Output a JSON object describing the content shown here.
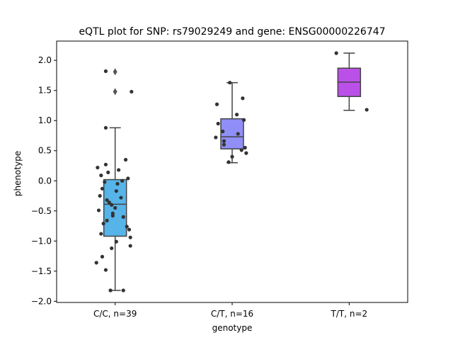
{
  "chart_data": {
    "type": "box",
    "title": "eQTL plot for SNP: rs79029249 and gene: ENSG00000226747",
    "xlabel": "genotype",
    "ylabel": "phenotype",
    "ylim": [
      -2.02,
      2.32
    ],
    "yticks": [
      2.0,
      1.5,
      1.0,
      0.5,
      0.0,
      -0.5,
      -1.0,
      -1.5,
      -2.0
    ],
    "ytick_labels": [
      "2.0",
      "1.5",
      "1.0",
      "0.5",
      "0.0",
      "−0.5",
      "−1.0",
      "−1.5",
      "−2.0"
    ],
    "categories": [
      "C/C, n=39",
      "C/T, n=16",
      "T/T, n=2"
    ],
    "boxes": [
      {
        "category": "C/C, n=39",
        "color": "#56b4e9",
        "q1": -0.92,
        "median": -0.39,
        "q3": 0.02,
        "whisker_low": -1.82,
        "whisker_high": 0.88,
        "outliers": [
          1.81,
          1.48
        ]
      },
      {
        "category": "C/T, n=16",
        "color": "#8f8ff7",
        "q1": 0.53,
        "median": 0.73,
        "q3": 1.03,
        "whisker_low": 0.3,
        "whisker_high": 1.63,
        "outliers": []
      },
      {
        "category": "T/T, n=2",
        "color": "#bb50e8",
        "q1": 1.4,
        "median": 1.64,
        "q3": 1.87,
        "whisker_low": 1.17,
        "whisker_high": 2.12,
        "outliers": []
      }
    ],
    "points": [
      [
        {
          "dx": -0.08,
          "y": 1.82
        },
        {
          "dx": 0.14,
          "y": 1.48
        },
        {
          "dx": -0.08,
          "y": 0.88
        },
        {
          "dx": 0.09,
          "y": 0.35
        },
        {
          "dx": -0.08,
          "y": 0.27
        },
        {
          "dx": -0.15,
          "y": 0.22
        },
        {
          "dx": 0.03,
          "y": 0.18
        },
        {
          "dx": -0.06,
          "y": 0.14
        },
        {
          "dx": -0.12,
          "y": 0.09
        },
        {
          "dx": 0.11,
          "y": 0.04
        },
        {
          "dx": 0.06,
          "y": 0.0
        },
        {
          "dx": -0.09,
          "y": -0.02
        },
        {
          "dx": 0.02,
          "y": -0.05
        },
        {
          "dx": -0.11,
          "y": -0.13
        },
        {
          "dx": 0.01,
          "y": -0.17
        },
        {
          "dx": -0.13,
          "y": -0.25
        },
        {
          "dx": -0.07,
          "y": -0.32
        },
        {
          "dx": -0.05,
          "y": -0.36
        },
        {
          "dx": -0.03,
          "y": -0.4
        },
        {
          "dx": 0.0,
          "y": -0.45
        },
        {
          "dx": -0.14,
          "y": -0.49
        },
        {
          "dx": -0.02,
          "y": -0.54
        },
        {
          "dx": 0.07,
          "y": -0.6
        },
        {
          "dx": -0.07,
          "y": -0.66
        },
        {
          "dx": -0.1,
          "y": -0.71
        },
        {
          "dx": 0.1,
          "y": -0.76
        },
        {
          "dx": 0.12,
          "y": -0.81
        },
        {
          "dx": -0.12,
          "y": -0.88
        },
        {
          "dx": 0.13,
          "y": -0.94
        },
        {
          "dx": 0.01,
          "y": -1.01
        },
        {
          "dx": 0.13,
          "y": -1.08
        },
        {
          "dx": -0.03,
          "y": -1.12
        },
        {
          "dx": -0.11,
          "y": -1.26
        },
        {
          "dx": -0.16,
          "y": -1.36
        },
        {
          "dx": -0.08,
          "y": -1.48
        },
        {
          "dx": -0.04,
          "y": -1.82
        },
        {
          "dx": 0.07,
          "y": -1.82
        },
        {
          "dx": -0.02,
          "y": -0.58
        },
        {
          "dx": 0.05,
          "y": -0.28
        }
      ],
      [
        {
          "dx": -0.02,
          "y": 1.63
        },
        {
          "dx": 0.09,
          "y": 1.37
        },
        {
          "dx": -0.13,
          "y": 1.27
        },
        {
          "dx": 0.04,
          "y": 1.1
        },
        {
          "dx": 0.1,
          "y": 1.01
        },
        {
          "dx": -0.12,
          "y": 0.95
        },
        {
          "dx": -0.08,
          "y": 0.82
        },
        {
          "dx": -0.14,
          "y": 0.72
        },
        {
          "dx": -0.07,
          "y": 0.66
        },
        {
          "dx": -0.07,
          "y": 0.6
        },
        {
          "dx": 0.11,
          "y": 0.55
        },
        {
          "dx": 0.08,
          "y": 0.51
        },
        {
          "dx": 0.12,
          "y": 0.46
        },
        {
          "dx": 0.0,
          "y": 0.4
        },
        {
          "dx": -0.03,
          "y": 0.31
        },
        {
          "dx": 0.05,
          "y": 0.78
        }
      ],
      [
        {
          "dx": -0.11,
          "y": 2.12
        },
        {
          "dx": 0.15,
          "y": 1.18
        }
      ]
    ]
  }
}
